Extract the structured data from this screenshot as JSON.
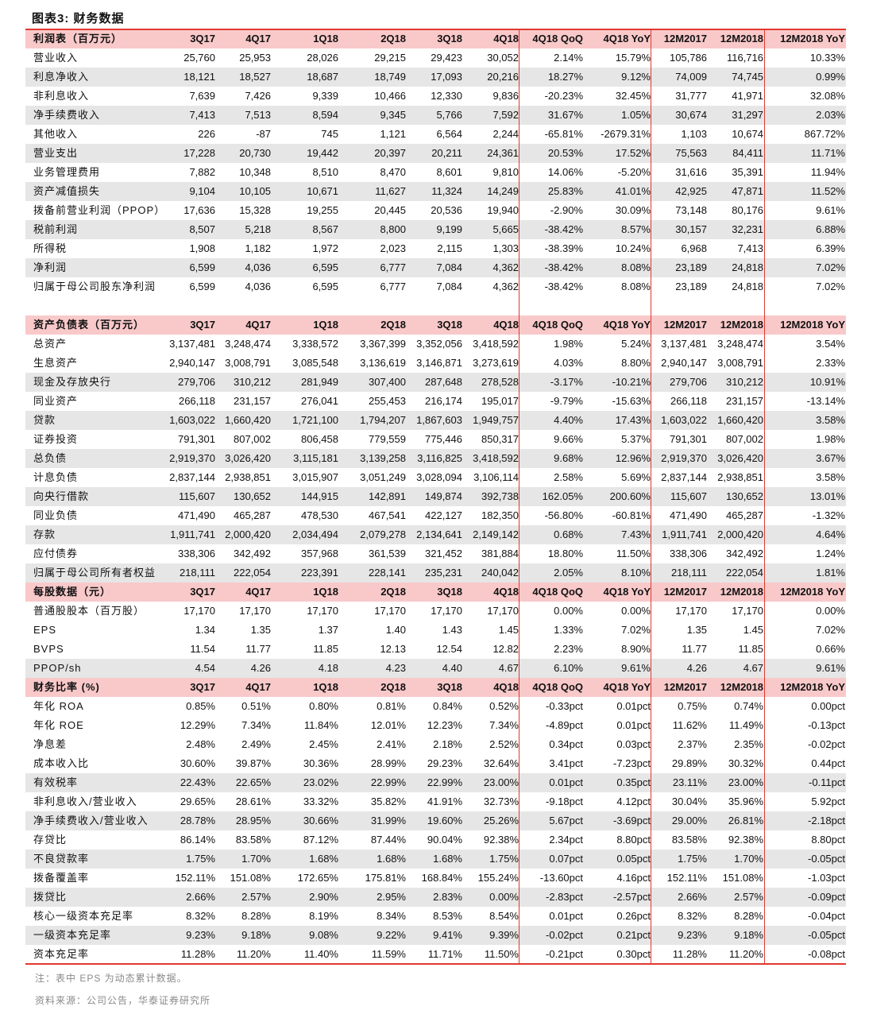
{
  "title": "图表3:   财务数据",
  "columns": [
    "3Q17",
    "4Q17",
    "1Q18",
    "2Q18",
    "3Q18",
    "4Q18",
    "4Q18 QoQ",
    "4Q18 YoY",
    "12M2017",
    "12M2018",
    "12M2018 YoY"
  ],
  "sections": [
    {
      "header": "利润表（百万元）",
      "rows": [
        {
          "label": "营业收入",
          "values": [
            "25,760",
            "25,953",
            "28,026",
            "29,215",
            "29,423",
            "30,052",
            "2.14%",
            "15.79%",
            "105,786",
            "116,716",
            "10.33%"
          ]
        },
        {
          "label": "利息净收入",
          "values": [
            "18,121",
            "18,527",
            "18,687",
            "18,749",
            "17,093",
            "20,216",
            "18.27%",
            "9.12%",
            "74,009",
            "74,745",
            "0.99%"
          ]
        },
        {
          "label": "非利息收入",
          "values": [
            "7,639",
            "7,426",
            "9,339",
            "10,466",
            "12,330",
            "9,836",
            "-20.23%",
            "32.45%",
            "31,777",
            "41,971",
            "32.08%"
          ]
        },
        {
          "label": "净手续费收入",
          "values": [
            "7,413",
            "7,513",
            "8,594",
            "9,345",
            "5,766",
            "7,592",
            "31.67%",
            "1.05%",
            "30,674",
            "31,297",
            "2.03%"
          ]
        },
        {
          "label": "其他收入",
          "values": [
            "226",
            "-87",
            "745",
            "1,121",
            "6,564",
            "2,244",
            "-65.81%",
            "-2679.31%",
            "1,103",
            "10,674",
            "867.72%"
          ]
        },
        {
          "label": "营业支出",
          "values": [
            "17,228",
            "20,730",
            "19,442",
            "20,397",
            "20,211",
            "24,361",
            "20.53%",
            "17.52%",
            "75,563",
            "84,411",
            "11.71%"
          ]
        },
        {
          "label": "业务管理费用",
          "values": [
            "7,882",
            "10,348",
            "8,510",
            "8,470",
            "8,601",
            "9,810",
            "14.06%",
            "-5.20%",
            "31,616",
            "35,391",
            "11.94%"
          ]
        },
        {
          "label": "资产减值损失",
          "values": [
            "9,104",
            "10,105",
            "10,671",
            "11,627",
            "11,324",
            "14,249",
            "25.83%",
            "41.01%",
            "42,925",
            "47,871",
            "11.52%"
          ]
        },
        {
          "label": "拨备前营业利润（PPOP）",
          "values": [
            "17,636",
            "15,328",
            "19,255",
            "20,445",
            "20,536",
            "19,940",
            "-2.90%",
            "30.09%",
            "73,148",
            "80,176",
            "9.61%"
          ]
        },
        {
          "label": "税前利润",
          "values": [
            "8,507",
            "5,218",
            "8,567",
            "8,800",
            "9,199",
            "5,665",
            "-38.42%",
            "8.57%",
            "30,157",
            "32,231",
            "6.88%"
          ]
        },
        {
          "label": "所得税",
          "values": [
            "1,908",
            "1,182",
            "1,972",
            "2,023",
            "2,115",
            "1,303",
            "-38.39%",
            "10.24%",
            "6,968",
            "7,413",
            "6.39%"
          ]
        },
        {
          "label": "净利润",
          "values": [
            "6,599",
            "4,036",
            "6,595",
            "6,777",
            "7,084",
            "4,362",
            "-38.42%",
            "8.08%",
            "23,189",
            "24,818",
            "7.02%"
          ]
        },
        {
          "label": "归属于母公司股东净利润",
          "values": [
            "6,599",
            "4,036",
            "6,595",
            "6,777",
            "7,084",
            "4,362",
            "-38.42%",
            "8.08%",
            "23,189",
            "24,818",
            "7.02%"
          ]
        }
      ]
    },
    {
      "header": "资产负债表（百万元）",
      "rows": [
        {
          "label": "总资产",
          "values": [
            "3,137,481",
            "3,248,474",
            "3,338,572",
            "3,367,399",
            "3,352,056",
            "3,418,592",
            "1.98%",
            "5.24%",
            "3,137,481",
            "3,248,474",
            "3.54%"
          ]
        },
        {
          "label": "生息资产",
          "values": [
            "2,940,147",
            "3,008,791",
            "3,085,548",
            "3,136,619",
            "3,146,871",
            "3,273,619",
            "4.03%",
            "8.80%",
            "2,940,147",
            "3,008,791",
            "2.33%"
          ]
        },
        {
          "label": "现金及存放央行",
          "values": [
            "279,706",
            "310,212",
            "281,949",
            "307,400",
            "287,648",
            "278,528",
            "-3.17%",
            "-10.21%",
            "279,706",
            "310,212",
            "10.91%"
          ]
        },
        {
          "label": "同业资产",
          "values": [
            "266,118",
            "231,157",
            "276,041",
            "255,453",
            "216,174",
            "195,017",
            "-9.79%",
            "-15.63%",
            "266,118",
            "231,157",
            "-13.14%"
          ]
        },
        {
          "label": "贷款",
          "values": [
            "1,603,022",
            "1,660,420",
            "1,721,100",
            "1,794,207",
            "1,867,603",
            "1,949,757",
            "4.40%",
            "17.43%",
            "1,603,022",
            "1,660,420",
            "3.58%"
          ]
        },
        {
          "label": "证券投资",
          "values": [
            "791,301",
            "807,002",
            "806,458",
            "779,559",
            "775,446",
            "850,317",
            "9.66%",
            "5.37%",
            "791,301",
            "807,002",
            "1.98%"
          ]
        },
        {
          "label": "总负债",
          "values": [
            "2,919,370",
            "3,026,420",
            "3,115,181",
            "3,139,258",
            "3,116,825",
            "3,418,592",
            "9.68%",
            "12.96%",
            "2,919,370",
            "3,026,420",
            "3.67%"
          ]
        },
        {
          "label": "计息负债",
          "values": [
            "2,837,144",
            "2,938,851",
            "3,015,907",
            "3,051,249",
            "3,028,094",
            "3,106,114",
            "2.58%",
            "5.69%",
            "2,837,144",
            "2,938,851",
            "3.58%"
          ]
        },
        {
          "label": "向央行借款",
          "values": [
            "115,607",
            "130,652",
            "144,915",
            "142,891",
            "149,874",
            "392,738",
            "162.05%",
            "200.60%",
            "115,607",
            "130,652",
            "13.01%"
          ]
        },
        {
          "label": "同业负债",
          "values": [
            "471,490",
            "465,287",
            "478,530",
            "467,541",
            "422,127",
            "182,350",
            "-56.80%",
            "-60.81%",
            "471,490",
            "465,287",
            "-1.32%"
          ]
        },
        {
          "label": "存款",
          "values": [
            "1,911,741",
            "2,000,420",
            "2,034,494",
            "2,079,278",
            "2,134,641",
            "2,149,142",
            "0.68%",
            "7.43%",
            "1,911,741",
            "2,000,420",
            "4.64%"
          ]
        },
        {
          "label": "应付债券",
          "values": [
            "338,306",
            "342,492",
            "357,968",
            "361,539",
            "321,452",
            "381,884",
            "18.80%",
            "11.50%",
            "338,306",
            "342,492",
            "1.24%"
          ]
        },
        {
          "label": "归属于母公司所有者权益",
          "values": [
            "218,111",
            "222,054",
            "223,391",
            "228,141",
            "235,231",
            "240,042",
            "2.05%",
            "8.10%",
            "218,111",
            "222,054",
            "1.81%"
          ]
        }
      ]
    },
    {
      "header": "每股数据（元）",
      "rows": [
        {
          "label": "普通股股本（百万股）",
          "values": [
            "17,170",
            "17,170",
            "17,170",
            "17,170",
            "17,170",
            "17,170",
            "0.00%",
            "0.00%",
            "17,170",
            "17,170",
            "0.00%"
          ]
        },
        {
          "label": "EPS",
          "values": [
            "1.34",
            "1.35",
            "1.37",
            "1.40",
            "1.43",
            "1.45",
            "1.33%",
            "7.02%",
            "1.35",
            "1.45",
            "7.02%"
          ]
        },
        {
          "label": "BVPS",
          "values": [
            "11.54",
            "11.77",
            "11.85",
            "12.13",
            "12.54",
            "12.82",
            "2.23%",
            "8.90%",
            "11.77",
            "11.85",
            "0.66%"
          ]
        },
        {
          "label": "PPOP/sh",
          "values": [
            "4.54",
            "4.26",
            "4.18",
            "4.23",
            "4.40",
            "4.67",
            "6.10%",
            "9.61%",
            "4.26",
            "4.67",
            "9.61%"
          ]
        }
      ]
    },
    {
      "header": "财务比率 (%)",
      "rows": [
        {
          "label": "年化 ROA",
          "values": [
            "0.85%",
            "0.51%",
            "0.80%",
            "0.81%",
            "0.84%",
            "0.52%",
            "-0.33pct",
            "0.01pct",
            "0.75%",
            "0.74%",
            "0.00pct"
          ]
        },
        {
          "label": "年化 ROE",
          "values": [
            "12.29%",
            "7.34%",
            "11.84%",
            "12.01%",
            "12.23%",
            "7.34%",
            "-4.89pct",
            "0.01pct",
            "11.62%",
            "11.49%",
            "-0.13pct"
          ]
        },
        {
          "label": "净息差",
          "values": [
            "2.48%",
            "2.49%",
            "2.45%",
            "2.41%",
            "2.18%",
            "2.52%",
            "0.34pct",
            "0.03pct",
            "2.37%",
            "2.35%",
            "-0.02pct"
          ]
        },
        {
          "label": "成本收入比",
          "values": [
            "30.60%",
            "39.87%",
            "30.36%",
            "28.99%",
            "29.23%",
            "32.64%",
            "3.41pct",
            "-7.23pct",
            "29.89%",
            "30.32%",
            "0.44pct"
          ]
        },
        {
          "label": "有效税率",
          "values": [
            "22.43%",
            "22.65%",
            "23.02%",
            "22.99%",
            "22.99%",
            "23.00%",
            "0.01pct",
            "0.35pct",
            "23.11%",
            "23.00%",
            "-0.11pct"
          ]
        },
        {
          "label": "非利息收入/营业收入",
          "values": [
            "29.65%",
            "28.61%",
            "33.32%",
            "35.82%",
            "41.91%",
            "32.73%",
            "-9.18pct",
            "4.12pct",
            "30.04%",
            "35.96%",
            "5.92pct"
          ]
        },
        {
          "label": "净手续费收入/营业收入",
          "values": [
            "28.78%",
            "28.95%",
            "30.66%",
            "31.99%",
            "19.60%",
            "25.26%",
            "5.67pct",
            "-3.69pct",
            "29.00%",
            "26.81%",
            "-2.18pct"
          ]
        },
        {
          "label": "存贷比",
          "values": [
            "86.14%",
            "83.58%",
            "87.12%",
            "87.44%",
            "90.04%",
            "92.38%",
            "2.34pct",
            "8.80pct",
            "83.58%",
            "92.38%",
            "8.80pct"
          ]
        },
        {
          "label": "不良贷款率",
          "values": [
            "1.75%",
            "1.70%",
            "1.68%",
            "1.68%",
            "1.68%",
            "1.75%",
            "0.07pct",
            "0.05pct",
            "1.75%",
            "1.70%",
            "-0.05pct"
          ]
        },
        {
          "label": "拨备覆盖率",
          "values": [
            "152.11%",
            "151.08%",
            "172.65%",
            "175.81%",
            "168.84%",
            "155.24%",
            "-13.60pct",
            "4.16pct",
            "152.11%",
            "151.08%",
            "-1.03pct"
          ]
        },
        {
          "label": "拨贷比",
          "values": [
            "2.66%",
            "2.57%",
            "2.90%",
            "2.95%",
            "2.83%",
            "0.00%",
            "-2.83pct",
            "-2.57pct",
            "2.66%",
            "2.57%",
            "-0.09pct"
          ]
        },
        {
          "label": "核心一级资本充足率",
          "values": [
            "8.32%",
            "8.28%",
            "8.19%",
            "8.34%",
            "8.53%",
            "8.54%",
            "0.01pct",
            "0.26pct",
            "8.32%",
            "8.28%",
            "-0.04pct"
          ]
        },
        {
          "label": "一级资本充足率",
          "values": [
            "9.23%",
            "9.18%",
            "9.08%",
            "9.22%",
            "9.41%",
            "9.39%",
            "-0.02pct",
            "0.21pct",
            "9.23%",
            "9.18%",
            "-0.05pct"
          ]
        },
        {
          "label": "资本充足率",
          "values": [
            "11.28%",
            "11.20%",
            "11.40%",
            "11.59%",
            "11.71%",
            "11.50%",
            "-0.21pct",
            "0.30pct",
            "11.28%",
            "11.20%",
            "-0.08pct"
          ]
        }
      ]
    }
  ],
  "note": "注：表中 EPS 为动态累计数据。",
  "source": "资料来源：公司公告，华泰证券研究所",
  "colors": {
    "header_bg": "#f9c9ca",
    "shade_bg": "#e6e6e6",
    "rule": "#e0392f"
  }
}
